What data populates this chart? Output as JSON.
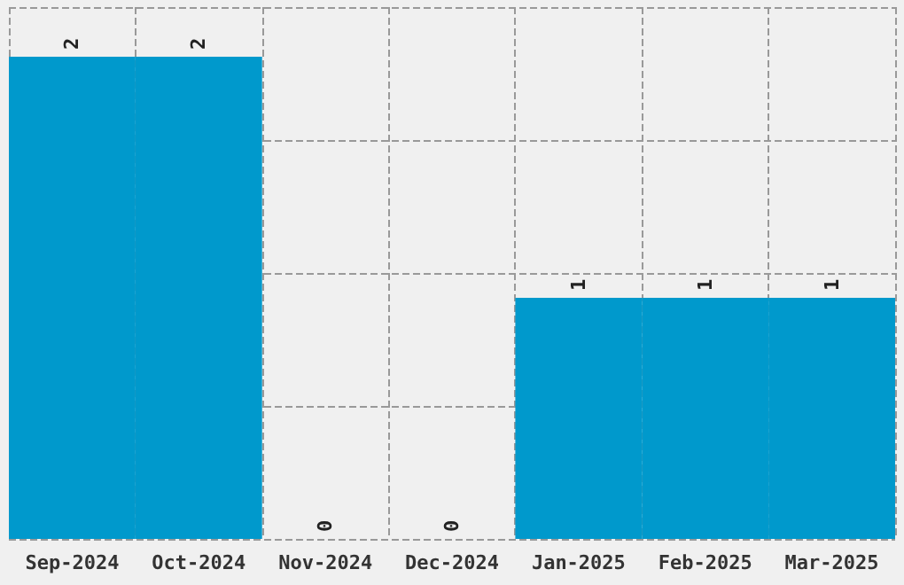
{
  "chart_data": {
    "type": "bar",
    "categories": [
      "Sep-2024",
      "Oct-2024",
      "Nov-2024",
      "Dec-2024",
      "Jan-2025",
      "Feb-2025",
      "Mar-2025"
    ],
    "values": [
      2,
      2,
      0,
      0,
      1,
      1,
      1
    ],
    "data_labels": true,
    "tick_labels": "x",
    "color": "#0099cc",
    "grid": true
  }
}
